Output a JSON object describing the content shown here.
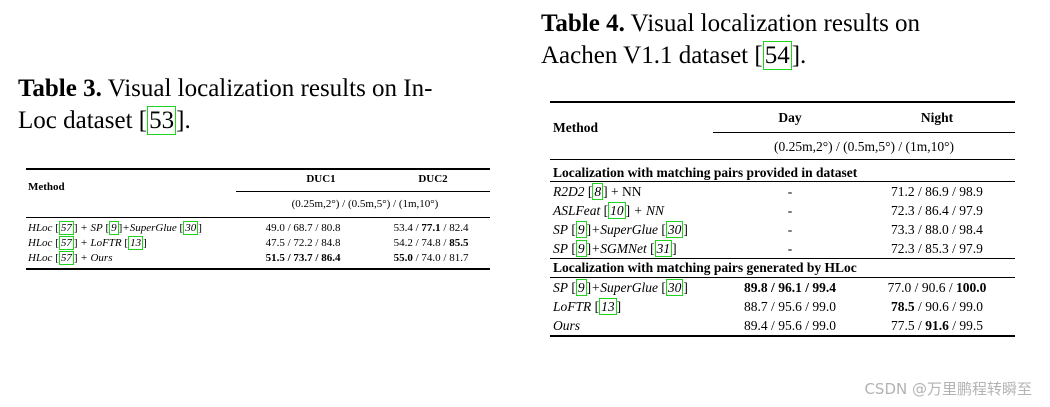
{
  "table3": {
    "caption_label": "Table 3.",
    "caption_line1": "Visual localization results on In-",
    "caption_line2_pre": "Loc dataset",
    "caption_ref": "53",
    "caption_line2_post": ".",
    "method_header": "Method",
    "col1_header": "DUC1",
    "col2_header": "DUC2",
    "thresholds": "(0.25m,2°) / (0.5m,5°) / (1m,10°)",
    "rows": [
      {
        "m1": "HLoc",
        "r1": "57",
        "m2": "+ SP",
        "r2": "9",
        "m3": "+SuperGlue",
        "r3": "30",
        "duc1": [
          "49.0",
          "68.7",
          "80.8"
        ],
        "duc2": [
          "53.4",
          "77.1",
          "82.4"
        ]
      },
      {
        "m1": "HLoc",
        "r1": "57",
        "m2": "+ LoFTR",
        "r2": "13",
        "duc1": [
          "47.5",
          "72.2",
          "84.8"
        ],
        "duc2": [
          "54.2",
          "74.8",
          "85.5"
        ]
      },
      {
        "m1": "HLoc",
        "r1": "57",
        "m2": "+ Ours",
        "duc1": [
          "51.5",
          "73.7",
          "86.4"
        ],
        "duc2": [
          "55.0",
          "74.0",
          "81.7"
        ]
      }
    ]
  },
  "table4": {
    "caption_label": "Table 4.",
    "caption_line1": "Visual localization results on",
    "caption_line2_pre": "Aachen V1.1 dataset",
    "caption_ref": "54",
    "caption_line2_post": ".",
    "method_header": "Method",
    "col1_header": "Day",
    "col2_header": "Night",
    "thresholds": "(0.25m,2°) / (0.5m,5°) / (1m,10°)",
    "section1": "Localization with matching pairs provided in dataset",
    "section2": "Localization with matching pairs generated by HLoc",
    "s1_rows": [
      {
        "m1": "R2D2",
        "r1": "8",
        "m2": "+ NN",
        "day": "-",
        "night": "71.2 / 86.9 / 98.9"
      },
      {
        "m1": "ASLFeat",
        "r1": "10",
        "m2": "+ NN",
        "day": "-",
        "night": "72.3 / 86.4 / 97.9"
      },
      {
        "m1": "SP",
        "r1": "9",
        "m2": "+SuperGlue",
        "r2": "30",
        "day": "-",
        "night": "73.3 / 88.0 / 98.4"
      },
      {
        "m1": "SP",
        "r1": "9",
        "m2": "+SGMNet",
        "r2": "31",
        "day": "-",
        "night": "72.3 / 85.3 / 97.9"
      }
    ],
    "s2_rows": [
      {
        "m1": "SP",
        "r1": "9",
        "m2": "+SuperGlue",
        "r2": "30",
        "day": [
          "89.8",
          "96.1",
          "99.4"
        ],
        "night": [
          "77.0",
          "90.6",
          "100.0"
        ]
      },
      {
        "m1": "LoFTR",
        "r1": "13",
        "day": [
          "88.7",
          "95.6",
          "99.0"
        ],
        "night": [
          "78.5",
          "90.6",
          "99.0"
        ]
      },
      {
        "m1": "Ours",
        "day": [
          "89.4",
          "95.6",
          "99.0"
        ],
        "night": [
          "77.5",
          "91.6",
          "99.5"
        ]
      }
    ]
  },
  "watermark": "CSDN @万里鹏程转瞬至"
}
